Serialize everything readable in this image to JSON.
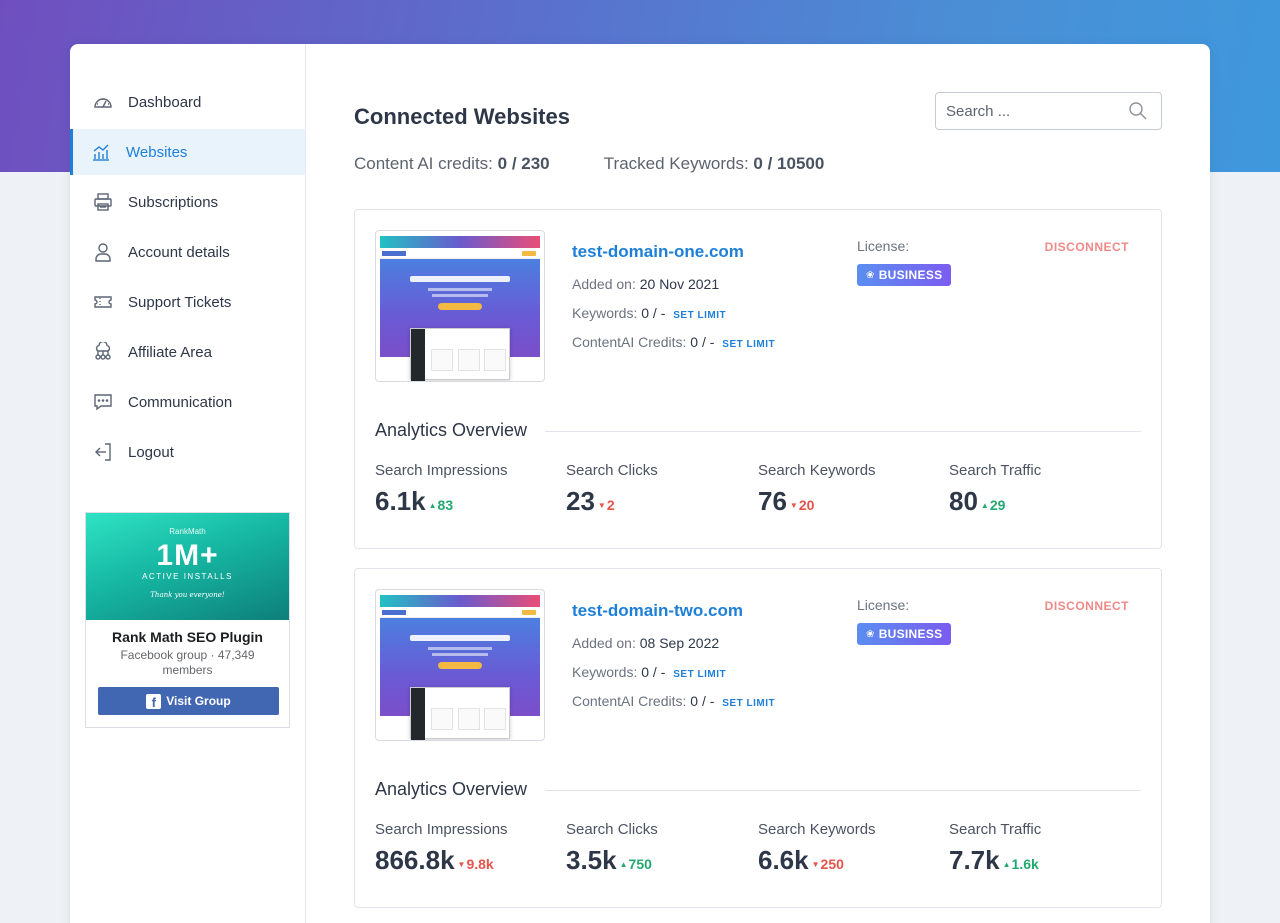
{
  "sidebar": {
    "items": [
      {
        "label": "Dashboard",
        "icon": "gauge-icon"
      },
      {
        "label": "Websites",
        "icon": "bar-chart-icon",
        "active": true
      },
      {
        "label": "Subscriptions",
        "icon": "printer-icon"
      },
      {
        "label": "Account details",
        "icon": "user-icon"
      },
      {
        "label": "Support Tickets",
        "icon": "ticket-icon"
      },
      {
        "label": "Affiliate Area",
        "icon": "network-icon"
      },
      {
        "label": "Communication",
        "icon": "chat-icon"
      },
      {
        "label": "Logout",
        "icon": "logout-icon"
      }
    ],
    "promo": {
      "brand": "RankMath",
      "headline": "1M+",
      "sub": "ACTIVE INSTALLS",
      "thanks": "Thank you everyone!",
      "title": "Rank Math SEO Plugin",
      "meta": "Facebook group · 47,349 members",
      "button": "Visit Group"
    }
  },
  "header": {
    "title": "Connected Websites",
    "search_placeholder": "Search ...",
    "content_ai_label": "Content AI credits:",
    "content_ai_value": "0 / 230",
    "keywords_label": "Tracked Keywords:",
    "keywords_value": "0 / 10500"
  },
  "labels": {
    "added_on": "Added on:",
    "keywords": "Keywords:",
    "content_ai": "ContentAI Credits:",
    "set_limit": "SET LIMIT",
    "license": "License:",
    "disconnect": "DISCONNECT",
    "analytics": "Analytics Overview"
  },
  "sites": [
    {
      "domain": "test-domain-one.com",
      "added_on": "20 Nov 2021",
      "keywords": "0 / -",
      "content_ai": "0 / -",
      "license": "BUSINESS",
      "metrics": [
        {
          "label": "Search Impressions",
          "value": "6.1k",
          "change": "83",
          "dir": "up"
        },
        {
          "label": "Search Clicks",
          "value": "23",
          "change": "2",
          "dir": "down"
        },
        {
          "label": "Search Keywords",
          "value": "76",
          "change": "20",
          "dir": "down"
        },
        {
          "label": "Search Traffic",
          "value": "80",
          "change": "29",
          "dir": "up"
        }
      ]
    },
    {
      "domain": "test-domain-two.com",
      "added_on": "08 Sep 2022",
      "keywords": "0 / -",
      "content_ai": "0 / -",
      "license": "BUSINESS",
      "metrics": [
        {
          "label": "Search Impressions",
          "value": "866.8k",
          "change": "9.8k",
          "dir": "down"
        },
        {
          "label": "Search Clicks",
          "value": "3.5k",
          "change": "750",
          "dir": "up"
        },
        {
          "label": "Search Keywords",
          "value": "6.6k",
          "change": "250",
          "dir": "down"
        },
        {
          "label": "Search Traffic",
          "value": "7.7k",
          "change": "1.6k",
          "dir": "up"
        }
      ]
    }
  ],
  "colors": {
    "accent": "#1d7fd8",
    "up": "#23a96f",
    "down": "#e5534b",
    "disconnect": "#ef8a87"
  }
}
